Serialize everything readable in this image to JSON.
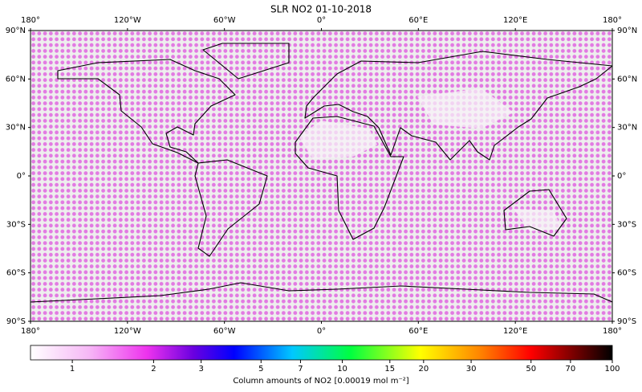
{
  "title": "SLR NO2 01-10-2018",
  "map": {
    "lonlim": [
      -180,
      180
    ],
    "latlim": [
      -90,
      90
    ],
    "lonticks": [
      {
        "value": -180,
        "label": "180°"
      },
      {
        "value": -120,
        "label": "120°W"
      },
      {
        "value": -60,
        "label": "60°W"
      },
      {
        "value": 0,
        "label": "0°"
      },
      {
        "value": 60,
        "label": "60°E"
      },
      {
        "value": 120,
        "label": "120°E"
      },
      {
        "value": 180,
        "label": "180°"
      }
    ],
    "latticks": [
      {
        "value": 90,
        "label": "90°N"
      },
      {
        "value": 60,
        "label": "60°N"
      },
      {
        "value": 30,
        "label": "30°N"
      },
      {
        "value": 0,
        "label": "0°"
      },
      {
        "value": -30,
        "label": "30°S"
      },
      {
        "value": -60,
        "label": "60°S"
      },
      {
        "value": -90,
        "label": "90°S"
      }
    ]
  },
  "colorbar": {
    "label": "Column amounts of NO2 [0.00019 mol m⁻²]",
    "lim": [
      0.7,
      100
    ],
    "log": true,
    "ticks": [
      1,
      2,
      3,
      5,
      7,
      10,
      15,
      20,
      30,
      50,
      70,
      100
    ]
  }
}
